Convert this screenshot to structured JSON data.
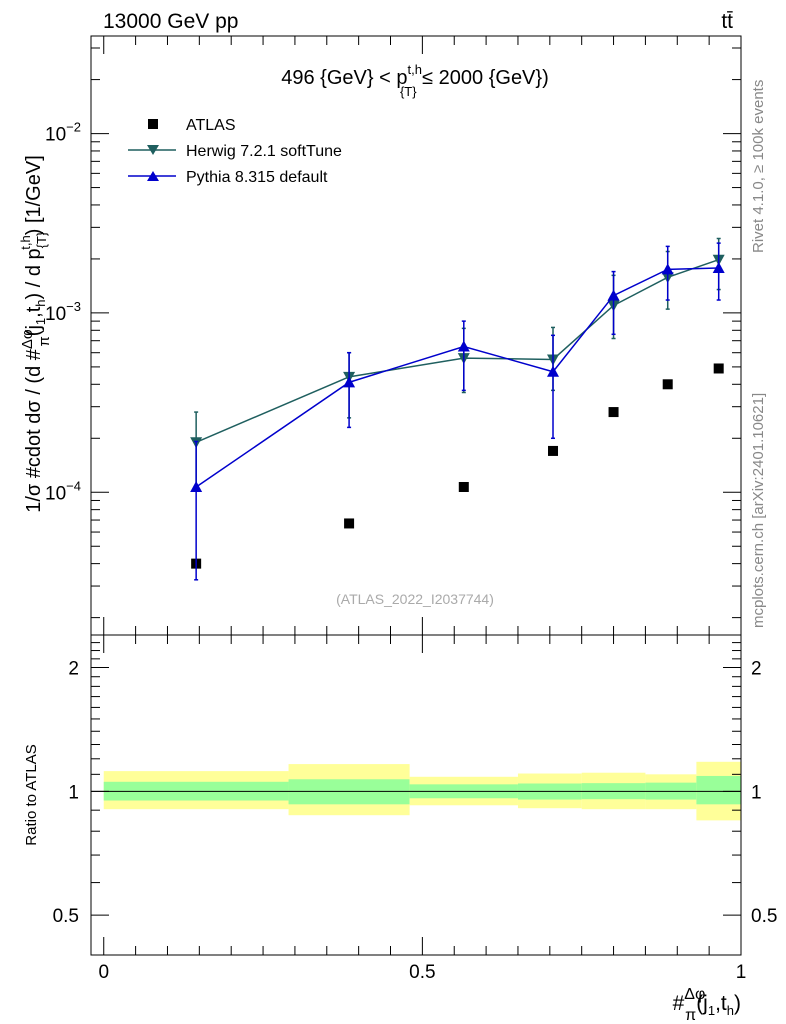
{
  "header": {
    "energy_label": "13000 GeV pp",
    "process_label": "tt̄"
  },
  "side_labels": {
    "rivet": "Rivet 4.1.0, ≥ 100k events",
    "mcplots": "mcplots.cern.ch [arXiv:2401.10621]"
  },
  "chart_data": [
    {
      "type": "scatter",
      "title": "496 {GeV} < p_{T}^{t,h} ≤ 2000 {GeV})",
      "title_parts": {
        "pre": "496 {GeV} < p",
        "sup": "t,h",
        "sub": "{T}",
        "post": " ≤ 2000 {GeV})"
      },
      "watermark": "(ATLAS_2022_I2037744)",
      "ylabel": "1/σ #cdot dσ / (d #Δφ/π(j₁,tₕ) / d p_{T}^{t,h}) [1/GeV]",
      "ylabel_parts": {
        "a": "1/σ #cdot dσ / (d #",
        "num": "Δφ",
        "den": "π",
        "b": "(j",
        "s1": "1",
        "c": ",t",
        "s2": "h",
        "d": ") / d p",
        "sub": "{T}",
        "sup": "t,h",
        "e": ") [1/GeV]"
      },
      "yscale": "log",
      "ylim": [
        1.6e-05,
        0.035
      ],
      "xlim": [
        -0.02,
        1.0
      ],
      "y_major_ticks": [
        {
          "value": 0.0001,
          "base": "10",
          "exp": "−4"
        },
        {
          "value": 0.001,
          "base": "10",
          "exp": "−3"
        },
        {
          "value": 0.01,
          "base": "10",
          "exp": "−2"
        }
      ],
      "legend_position": "top-left",
      "series": [
        {
          "name": "ATLAS",
          "marker": "square",
          "color": "#000000",
          "x": [
            0.145,
            0.385,
            0.565,
            0.705,
            0.8,
            0.885,
            0.965
          ],
          "y": [
            4e-05,
            6.7e-05,
            0.000107,
            0.00017,
            0.00028,
            0.0004,
            0.00049
          ]
        },
        {
          "name": "Herwig 7.2.1 softTune",
          "marker": "triangle-down",
          "color": "#1f5f5f",
          "x": [
            0.145,
            0.385,
            0.565,
            0.705,
            0.8,
            0.885,
            0.965
          ],
          "y": [
            0.00019,
            0.00044,
            0.00056,
            0.00055,
            0.0011,
            0.00158,
            0.00198
          ],
          "y_low": [
            0.000105,
            0.00026,
            0.00036,
            0.00037,
            0.00072,
            0.00105,
            0.00135
          ],
          "y_high": [
            0.00028,
            0.0006,
            0.00082,
            0.00083,
            0.00162,
            0.0022,
            0.0026
          ]
        },
        {
          "name": "Pythia 8.315 default",
          "marker": "triangle-up",
          "color": "#0000cc",
          "x": [
            0.145,
            0.385,
            0.565,
            0.705,
            0.8,
            0.885,
            0.965
          ],
          "y": [
            0.000107,
            0.00041,
            0.00065,
            0.00047,
            0.00125,
            0.00175,
            0.00178
          ],
          "y_low": [
            3.25e-05,
            0.00023,
            0.00037,
            0.0002,
            0.00076,
            0.00118,
            0.00118
          ],
          "y_high": [
            0.000192,
            0.0006,
            0.0009,
            0.00075,
            0.0017,
            0.00235,
            0.00245
          ]
        }
      ]
    },
    {
      "type": "area",
      "ylabel": "Ratio to ATLAS",
      "xlabel": "#Δφ/π(j₁,tₕ)",
      "xlabel_parts": {
        "hash": "#",
        "num": "Δφ",
        "den": "π",
        "a": "(j",
        "s1": "1",
        "b": ",t",
        "s2": "h",
        "c": ")"
      },
      "yscale": "log",
      "ylim": [
        0.4,
        2.4
      ],
      "xlim": [
        -0.02,
        1.0
      ],
      "x_ticks": [
        {
          "value": 0,
          "label": "0"
        },
        {
          "value": 0.5,
          "label": "0.5"
        },
        {
          "value": 1,
          "label": "1"
        }
      ],
      "y_ticks": [
        {
          "value": 0.5,
          "label": "0.5"
        },
        {
          "value": 1,
          "label": "1"
        },
        {
          "value": 2,
          "label": "2"
        }
      ],
      "reference_line": 1.0,
      "bins": [
        {
          "x_low": 0.0,
          "x_high": 0.29,
          "stat_low": 0.95,
          "stat_high": 1.055,
          "total_low": 0.905,
          "total_high": 1.12
        },
        {
          "x_low": 0.29,
          "x_high": 0.48,
          "stat_low": 0.93,
          "stat_high": 1.07,
          "total_low": 0.875,
          "total_high": 1.165
        },
        {
          "x_low": 0.48,
          "x_high": 0.65,
          "stat_low": 0.962,
          "stat_high": 1.04,
          "total_low": 0.925,
          "total_high": 1.085
        },
        {
          "x_low": 0.65,
          "x_high": 0.75,
          "stat_low": 0.955,
          "stat_high": 1.045,
          "total_low": 0.91,
          "total_high": 1.105
        },
        {
          "x_low": 0.75,
          "x_high": 0.85,
          "stat_low": 0.957,
          "stat_high": 1.047,
          "total_low": 0.905,
          "total_high": 1.11
        },
        {
          "x_low": 0.85,
          "x_high": 0.93,
          "stat_low": 0.955,
          "stat_high": 1.05,
          "total_low": 0.905,
          "total_high": 1.1
        },
        {
          "x_low": 0.93,
          "x_high": 1.0,
          "stat_low": 0.93,
          "stat_high": 1.09,
          "total_low": 0.85,
          "total_high": 1.18
        }
      ],
      "colors": {
        "stat": "#99ff99",
        "total": "#ffff99"
      }
    }
  ]
}
